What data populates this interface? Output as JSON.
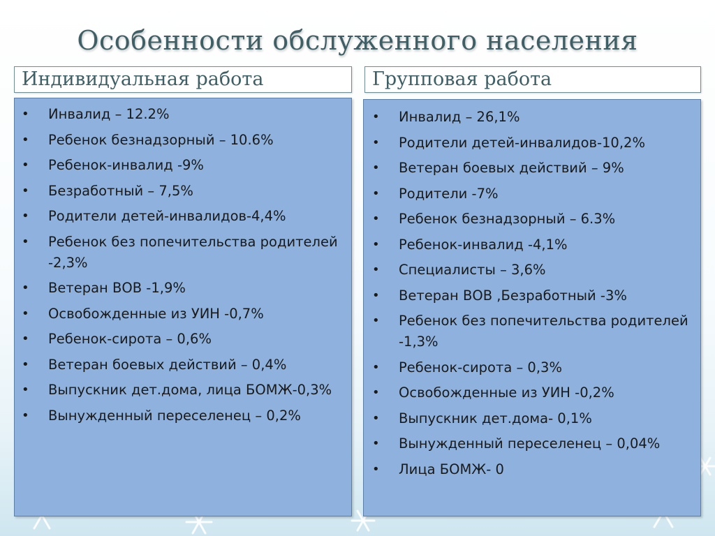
{
  "slide": {
    "title": "Особенности обслуженного населения"
  },
  "columns": [
    {
      "header": "Индивидуальная работа",
      "items": [
        "Инвалид – 12.2%",
        "Ребенок безнадзорный – 10.6%",
        "Ребенок-инвалид -9%",
        "Безработный – 7,5%",
        "Родители детей-инвалидов-4,4%",
        "Ребенок без попечительства родителей -2,3%",
        "Ветеран ВОВ -1,9%",
        "Освобожденные из УИН -0,7%",
        "Ребенок-сирота – 0,6%",
        "Ветеран боевых действий – 0,4%",
        "Выпускник дет.дома, лица БОМЖ-0,3%",
        "Вынужденный переселенец – 0,2%"
      ]
    },
    {
      "header": "Групповая работа",
      "items": [
        "Инвалид – 26,1%",
        "Родители детей-инвалидов-10,2%",
        "Ветеран боевых действий – 9%",
        "Родители -7%",
        "Ребенок безнадзорный – 6.3%",
        "Ребенок-инвалид -4,1%",
        "Специалисты – 3,6%",
        "Ветеран ВОВ ,Безработный -3%",
        "Ребенок без попечительства родителей -1,3%",
        "Ребенок-сирота – 0,3%",
        "Освобожденные из УИН -0,2%",
        "Выпускник дет.дома- 0,1%",
        "Вынужденный переселенец – 0,04%",
        "Лица БОМЖ- 0"
      ]
    }
  ]
}
